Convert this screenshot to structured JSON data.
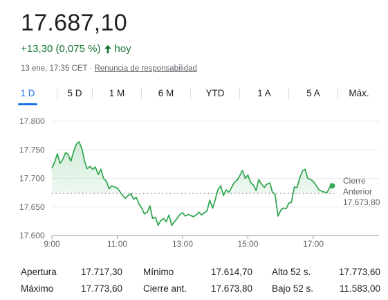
{
  "quote": {
    "price": "17.687,10",
    "change": "+13,30 (0,075 %)",
    "change_period": "hoy",
    "timestamp": "13 ene, 17:35 CET",
    "separator": "·",
    "disclaimer": "Renuncia de responsabilidad",
    "up_color": "#137333"
  },
  "tabs": [
    {
      "label": "1 D",
      "active": true
    },
    {
      "label": "5 D"
    },
    {
      "label": "1 M"
    },
    {
      "label": "6 M"
    },
    {
      "label": "YTD"
    },
    {
      "label": "1 A"
    },
    {
      "label": "5 A"
    },
    {
      "label": "Máx."
    }
  ],
  "chart_data": {
    "type": "line",
    "line_color": "#34a853",
    "grid": true,
    "ylim": [
      17600,
      17800
    ],
    "yticks": [
      17600,
      17650,
      17700,
      17750,
      17800
    ],
    "ytick_labels": [
      "17.600",
      "17.650",
      "17.700",
      "17.750",
      "17.800"
    ],
    "xlim": [
      9.0,
      17.5
    ],
    "xticks": [
      9,
      11,
      13,
      15,
      17
    ],
    "xtick_labels": [
      "9:00",
      "11:00",
      "13:00",
      "15:00",
      "17:00"
    ],
    "previous_close": 17673.8,
    "previous_close_label": [
      "Cierre",
      "Anterior",
      "17.673,80"
    ],
    "x": [
      9.0,
      9.08,
      9.17,
      9.25,
      9.33,
      9.42,
      9.5,
      9.58,
      9.67,
      9.75,
      9.83,
      9.92,
      10.0,
      10.08,
      10.17,
      10.25,
      10.33,
      10.42,
      10.5,
      10.58,
      10.67,
      10.75,
      10.83,
      10.92,
      11.0,
      11.08,
      11.17,
      11.25,
      11.33,
      11.42,
      11.5,
      11.58,
      11.67,
      11.75,
      11.83,
      11.92,
      12.0,
      12.08,
      12.17,
      12.25,
      12.33,
      12.42,
      12.5,
      12.58,
      12.67,
      12.75,
      12.83,
      12.92,
      13.0,
      13.08,
      13.17,
      13.25,
      13.33,
      13.42,
      13.5,
      13.58,
      13.67,
      13.75,
      13.83,
      13.92,
      14.0,
      14.08,
      14.17,
      14.25,
      14.33,
      14.42,
      14.5,
      14.58,
      14.67,
      14.75,
      14.83,
      14.92,
      15.0,
      15.08,
      15.17,
      15.25,
      15.33,
      15.42,
      15.5,
      15.58,
      15.67,
      15.75,
      15.83,
      15.92,
      16.0,
      16.08,
      16.17,
      16.25,
      16.33,
      16.42,
      16.5,
      16.58,
      16.67,
      16.75,
      16.83,
      16.92,
      17.0,
      17.08,
      17.17,
      17.25,
      17.33,
      17.42,
      17.5,
      17.58
    ],
    "values": [
      17718,
      17728,
      17743,
      17726,
      17733,
      17745,
      17742,
      17730,
      17748,
      17760,
      17764,
      17752,
      17730,
      17717,
      17721,
      17716,
      17720,
      17707,
      17716,
      17700,
      17695,
      17682,
      17687,
      17685,
      17683,
      17677,
      17670,
      17665,
      17670,
      17673,
      17664,
      17667,
      17655,
      17648,
      17638,
      17641,
      17652,
      17630,
      17632,
      17618,
      17626,
      17630,
      17624,
      17636,
      17618,
      17624,
      17630,
      17637,
      17640,
      17634,
      17637,
      17635,
      17633,
      17636,
      17641,
      17636,
      17640,
      17643,
      17662,
      17648,
      17663,
      17680,
      17687,
      17670,
      17680,
      17676,
      17684,
      17693,
      17697,
      17705,
      17714,
      17700,
      17706,
      17693,
      17688,
      17679,
      17698,
      17690,
      17684,
      17690,
      17692,
      17676,
      17672,
      17634,
      17644,
      17648,
      17647,
      17657,
      17658,
      17685,
      17684,
      17700,
      17713,
      17716,
      17700,
      17698,
      17695,
      17688,
      17680,
      17678,
      17676,
      17675,
      17684,
      17687
    ]
  },
  "stats": [
    {
      "label": "Apertura",
      "value": "17.717,30"
    },
    {
      "label": "Mínimo",
      "value": "17.614,70"
    },
    {
      "label": "Alto 52 s.",
      "value": "17.773,60"
    },
    {
      "label": "Máximo",
      "value": "17.773,60"
    },
    {
      "label": "Cierre ant.",
      "value": "17.673,80"
    },
    {
      "label": "Bajo 52 s.",
      "value": "11.583,00"
    }
  ]
}
